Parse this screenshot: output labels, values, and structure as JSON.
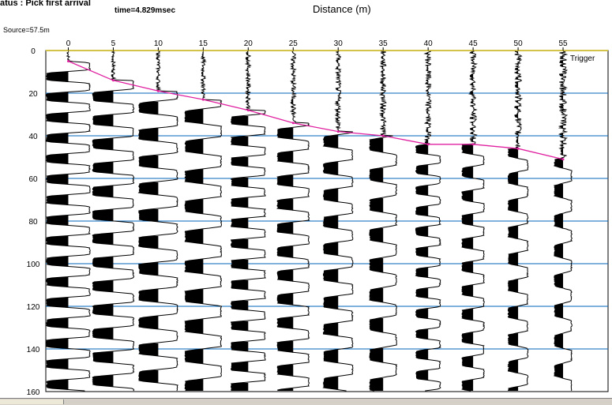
{
  "status_text": "atus : Pick first arrival",
  "time_readout": "time=4.829msec",
  "source_label": "Source=57.5m",
  "chart_data": {
    "type": "line",
    "title": "Distance (m)",
    "xlabel": "",
    "ylabel": "",
    "x_ticks": [
      0,
      5,
      10,
      15,
      20,
      25,
      30,
      35,
      40,
      45,
      50,
      55
    ],
    "y_ticks": [
      0,
      20,
      40,
      60,
      80,
      100,
      120,
      140,
      160
    ],
    "xlim": [
      -2.5,
      60
    ],
    "ylim": [
      0,
      160
    ],
    "trigger_label": "Trigger",
    "traces_x": [
      0,
      5,
      10,
      15,
      20,
      25,
      30,
      35,
      40,
      45,
      50,
      55
    ],
    "first_arrival_picks": {
      "x": [
        0,
        5,
        10,
        15,
        20,
        25,
        30,
        35,
        40,
        45,
        50,
        55
      ],
      "y": [
        5,
        14,
        19,
        23,
        28,
        34,
        38,
        40,
        44,
        44,
        46,
        51
      ]
    },
    "colors": {
      "gridline": "#0066bb",
      "top_axis": "#d4c24a",
      "picks": "#e020a0",
      "trace_fill": "#000000"
    }
  }
}
